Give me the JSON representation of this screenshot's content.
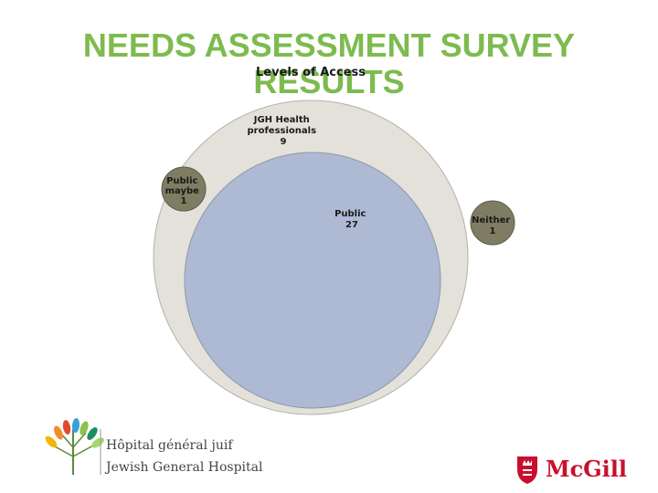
{
  "slide": {
    "title_line1": "NEEDS ASSESSMENT SURVEY",
    "title_line2": "RESULTS"
  },
  "diagram": {
    "heading": "Levels of Access",
    "groups": [
      {
        "label_lines": [
          "JGH Health",
          "professionals"
        ],
        "count": "9"
      },
      {
        "label_lines": [
          "Public"
        ],
        "count": "27"
      },
      {
        "label_lines": [
          "Public",
          "maybe"
        ],
        "count": "1"
      },
      {
        "label_lines": [
          "Neither"
        ],
        "count": "1"
      }
    ]
  },
  "logos": {
    "jgh_fr": "Hôpital général juif",
    "jgh_en": "Jewish General Hospital",
    "mcgill": "McGill"
  },
  "colors": {
    "title": "#7dbb4e",
    "outer_circle": "#e3e1d9",
    "outer_circle_stroke": "#b3b2a8",
    "public_circle": "#aeb9d3",
    "public_circle_stroke": "#8d97ad",
    "small_circle": "#7e7c62",
    "small_circle_stroke": "#5e5d48",
    "mcgill_red": "#c8102e"
  },
  "icons": {
    "jgh_logo": "tree-of-life-icon",
    "mcgill_logo": "mcgill-crest-icon"
  }
}
